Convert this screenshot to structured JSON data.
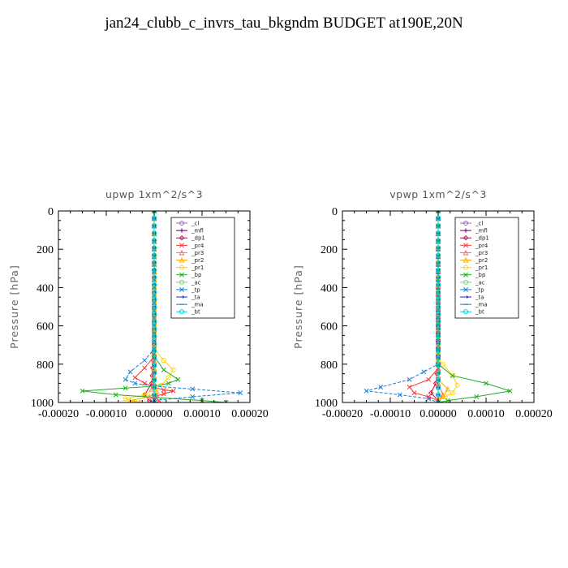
{
  "title": "jan24_clubb_c_invrs_tau_bkgndm  BUDGET at190E,20N",
  "chart_data": [
    {
      "type": "line",
      "title": "upwp   1xm^2/s^3",
      "ylabel": "Pressure  [hPa]",
      "xlabel": "",
      "xlim": [
        -0.0002,
        0.0002
      ],
      "ylim": [
        0,
        1000
      ],
      "y_inverted": false,
      "xticks": [
        "-0.00020",
        "-0.00010",
        "0.00000",
        "0.00010",
        "0.00020"
      ],
      "yticks": [
        "0",
        "200",
        "400",
        "600",
        "800",
        "1000"
      ],
      "legend_position": "top-right",
      "series": [
        {
          "name": "_cl",
          "color": "#9966cc",
          "marker": "circle",
          "points": [
            [
              0,
              0
            ],
            [
              0,
              200
            ],
            [
              0,
              400
            ],
            [
              0,
              600
            ],
            [
              0,
              800
            ],
            [
              0,
              1000
            ]
          ]
        },
        {
          "name": "_mfl",
          "color": "#660066",
          "marker": "plus",
          "points": [
            [
              0,
              0
            ],
            [
              0,
              200
            ],
            [
              0,
              400
            ],
            [
              0,
              600
            ],
            [
              0,
              800
            ],
            [
              0,
              1000
            ]
          ]
        },
        {
          "name": "_dp1",
          "color": "#cc0033",
          "marker": "diamond",
          "points": [
            [
              0,
              0
            ],
            [
              0,
              700
            ],
            [
              -5e-06,
              900
            ],
            [
              -2e-05,
              960
            ],
            [
              -1e-05,
              990
            ],
            [
              0,
              1000
            ]
          ]
        },
        {
          "name": "_pr4",
          "color": "#ff3333",
          "marker": "x",
          "points": [
            [
              0,
              0
            ],
            [
              0,
              760
            ],
            [
              -2e-05,
              820
            ],
            [
              -4e-05,
              870
            ],
            [
              -2e-05,
              900
            ],
            [
              0,
              920
            ],
            [
              2e-05,
              935
            ],
            [
              4e-05,
              940
            ],
            [
              2e-05,
              955
            ],
            [
              0,
              970
            ],
            [
              1e-05,
              990
            ]
          ]
        },
        {
          "name": "_pr3",
          "color": "#ff6666",
          "marker": "triangle",
          "points": [
            [
              0,
              0
            ],
            [
              0,
              900
            ],
            [
              -5e-06,
              930
            ],
            [
              5e-06,
              960
            ],
            [
              0,
              1000
            ]
          ]
        },
        {
          "name": "_pr2",
          "color": "#ffaa00",
          "marker": "triangle",
          "points": [
            [
              0,
              0
            ],
            [
              0,
              900
            ],
            [
              5e-06,
              940
            ],
            [
              -1e-05,
              970
            ],
            [
              -5e-05,
              990
            ],
            [
              -3e-05,
              1000
            ]
          ]
        },
        {
          "name": "_pr1",
          "color": "#ffd700",
          "marker": "circle",
          "points": [
            [
              0,
              0
            ],
            [
              0,
              720
            ],
            [
              2e-05,
              780
            ],
            [
              4e-05,
              830
            ],
            [
              3e-05,
              870
            ],
            [
              1.5e-05,
              910
            ],
            [
              0,
              930
            ],
            [
              -2e-05,
              960
            ],
            [
              -6e-05,
              980
            ],
            [
              -4e-05,
              1000
            ]
          ]
        },
        {
          "name": "_bp",
          "color": "#22aa22",
          "marker": "x",
          "points": [
            [
              0,
              0
            ],
            [
              0,
              760
            ],
            [
              2e-05,
              830
            ],
            [
              5e-05,
              880
            ],
            [
              3e-05,
              900
            ],
            [
              0,
              915
            ],
            [
              -6e-05,
              925
            ],
            [
              -0.00015,
              940
            ],
            [
              -8e-05,
              960
            ],
            [
              0.0001,
              990
            ],
            [
              0.00015,
              1000
            ]
          ]
        },
        {
          "name": "_ac",
          "color": "#66dd66",
          "marker": "circle",
          "points": [
            [
              0,
              0
            ],
            [
              0,
              1000
            ]
          ]
        },
        {
          "name": "_tp",
          "color": "#1e7fd0",
          "marker": "x",
          "points": [
            [
              0,
              0
            ],
            [
              0,
              720
            ],
            [
              -2e-05,
              780
            ],
            [
              -5e-05,
              840
            ],
            [
              -6e-05,
              880
            ],
            [
              -4e-05,
              900
            ],
            [
              0,
              915
            ],
            [
              8e-05,
              930
            ],
            [
              0.00018,
              950
            ],
            [
              8e-05,
              970
            ],
            [
              0,
              990
            ]
          ]
        },
        {
          "name": "_ta",
          "color": "#2222cc",
          "marker": "arrow",
          "points": [
            [
              0,
              0
            ],
            [
              0,
              1000
            ]
          ]
        },
        {
          "name": "_ma",
          "color": "#0088aa",
          "marker": "dash",
          "points": [
            [
              0,
              0
            ],
            [
              0,
              1000
            ]
          ]
        },
        {
          "name": "_bt",
          "color": "#00d0d0",
          "marker": "circle",
          "points": [
            [
              0,
              0
            ],
            [
              0,
              1000
            ]
          ]
        }
      ]
    },
    {
      "type": "line",
      "title": "vpwp   1xm^2/s^3",
      "ylabel": "Pressure  [hPa]",
      "xlabel": "",
      "xlim": [
        -0.0002,
        0.0002
      ],
      "ylim": [
        0,
        1000
      ],
      "y_inverted": false,
      "xticks": [
        "-0.00020",
        "-0.00010",
        "0.00000",
        "0.00010",
        "0.00020"
      ],
      "yticks": [
        "0",
        "200",
        "400",
        "600",
        "800",
        "1000"
      ],
      "legend_position": "top-right",
      "series": [
        {
          "name": "_cl",
          "color": "#9966cc",
          "marker": "circle",
          "points": [
            [
              0,
              0
            ],
            [
              0,
              200
            ],
            [
              0,
              400
            ],
            [
              0,
              600
            ],
            [
              0,
              800
            ],
            [
              0,
              1000
            ]
          ]
        },
        {
          "name": "_mfl",
          "color": "#660066",
          "marker": "plus",
          "points": [
            [
              0,
              0
            ],
            [
              0,
              200
            ],
            [
              0,
              400
            ],
            [
              0,
              600
            ],
            [
              0,
              800
            ],
            [
              0,
              1000
            ]
          ]
        },
        {
          "name": "_dp1",
          "color": "#cc0033",
          "marker": "diamond",
          "points": [
            [
              0,
              0
            ],
            [
              0,
              800
            ],
            [
              -5e-06,
              900
            ],
            [
              -1.5e-05,
              950
            ],
            [
              0,
              990
            ]
          ]
        },
        {
          "name": "_pr4",
          "color": "#ff3333",
          "marker": "x",
          "points": [
            [
              0,
              0
            ],
            [
              0,
              820
            ],
            [
              -2e-05,
              880
            ],
            [
              -6e-05,
              920
            ],
            [
              -5e-05,
              950
            ],
            [
              -2e-05,
              970
            ],
            [
              0,
              990
            ]
          ]
        },
        {
          "name": "_pr3",
          "color": "#ff6666",
          "marker": "triangle",
          "points": [
            [
              0,
              0
            ],
            [
              0,
              900
            ],
            [
              1e-05,
              960
            ],
            [
              0,
              990
            ]
          ]
        },
        {
          "name": "_pr2",
          "color": "#ffaa00",
          "marker": "triangle",
          "points": [
            [
              0,
              0
            ],
            [
              0,
              880
            ],
            [
              2e-05,
              930
            ],
            [
              1e-05,
              970
            ],
            [
              0,
              1000
            ]
          ]
        },
        {
          "name": "_pr1",
          "color": "#ffd700",
          "marker": "circle",
          "points": [
            [
              0,
              0
            ],
            [
              0,
              780
            ],
            [
              1e-05,
              800
            ],
            [
              3e-05,
              860
            ],
            [
              4e-05,
              910
            ],
            [
              3e-05,
              950
            ],
            [
              1.5e-05,
              970
            ],
            [
              0,
              990
            ]
          ]
        },
        {
          "name": "_bp",
          "color": "#22aa22",
          "marker": "x",
          "points": [
            [
              0,
              0
            ],
            [
              0,
              800
            ],
            [
              3e-05,
              860
            ],
            [
              0.0001,
              900
            ],
            [
              0.00015,
              940
            ],
            [
              8e-05,
              970
            ],
            [
              2e-05,
              990
            ],
            [
              0,
              1000
            ]
          ]
        },
        {
          "name": "_ac",
          "color": "#66dd66",
          "marker": "circle",
          "points": [
            [
              0,
              0
            ],
            [
              0,
              1000
            ]
          ]
        },
        {
          "name": "_tp",
          "color": "#1e7fd0",
          "marker": "x",
          "points": [
            [
              0,
              0
            ],
            [
              0,
              800
            ],
            [
              -3e-05,
              840
            ],
            [
              -6e-05,
              880
            ],
            [
              -0.00012,
              920
            ],
            [
              -0.00015,
              940
            ],
            [
              -8e-05,
              960
            ],
            [
              -2e-05,
              980
            ],
            [
              0,
              1000
            ]
          ]
        },
        {
          "name": "_ta",
          "color": "#2222cc",
          "marker": "arrow",
          "points": [
            [
              0,
              0
            ],
            [
              0,
              1000
            ]
          ]
        },
        {
          "name": "_ma",
          "color": "#0088aa",
          "marker": "dash",
          "points": [
            [
              0,
              0
            ],
            [
              0,
              1000
            ]
          ]
        },
        {
          "name": "_bt",
          "color": "#00d0d0",
          "marker": "circle",
          "points": [
            [
              0,
              0
            ],
            [
              0,
              1000
            ]
          ]
        }
      ]
    }
  ]
}
